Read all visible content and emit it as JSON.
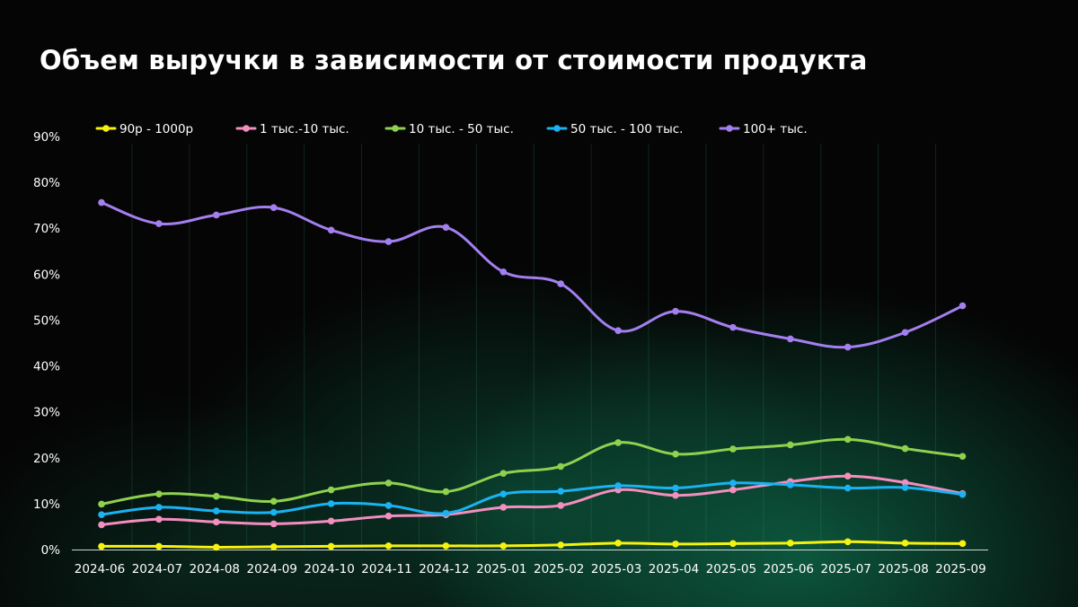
{
  "title": "Объем выручки в зависимости от стоимости продукта",
  "chart_data": {
    "type": "line",
    "title": "Объем выручки в зависимости от стоимости продукта",
    "xlabel": "",
    "ylabel": "",
    "categories": [
      "2024-06",
      "2024-07",
      "2024-08",
      "2024-09",
      "2024-10",
      "2024-11",
      "2024-12",
      "2025-01",
      "2025-02",
      "2025-03",
      "2025-04",
      "2025-05",
      "2025-06",
      "2025-07",
      "2025-08",
      "2025-09"
    ],
    "y_ticks": [
      "0%",
      "10%",
      "20%",
      "30%",
      "40%",
      "50%",
      "60%",
      "70%",
      "80%",
      "90%"
    ],
    "ylim": [
      0,
      90
    ],
    "grid": "vertical",
    "legend_position": "top",
    "series": [
      {
        "name": "90р - 1000р",
        "color": "#f5f211",
        "values": [
          0.7,
          0.7,
          0.5,
          0.6,
          0.7,
          0.8,
          0.8,
          0.8,
          1.0,
          1.4,
          1.2,
          1.3,
          1.4,
          1.7,
          1.4,
          1.3
        ]
      },
      {
        "name": "1 тыс.-10 тыс.",
        "color": "#f28fbf",
        "values": [
          5.4,
          6.6,
          6.0,
          5.6,
          6.2,
          7.3,
          7.6,
          9.2,
          9.6,
          13.0,
          11.8,
          13.0,
          14.8,
          16.0,
          14.6,
          12.2
        ]
      },
      {
        "name": "10 тыс. - 50 тыс.",
        "color": "#8fd14f",
        "values": [
          9.9,
          12.1,
          11.6,
          10.5,
          13.0,
          14.5,
          12.6,
          16.6,
          18.1,
          23.3,
          20.8,
          21.9,
          22.8,
          24.0,
          22.0,
          20.3
        ]
      },
      {
        "name": "50 тыс. - 100 тыс.",
        "color": "#1ab2f0",
        "values": [
          7.6,
          9.2,
          8.4,
          8.1,
          10.0,
          9.6,
          7.9,
          12.1,
          12.7,
          13.9,
          13.4,
          14.5,
          14.1,
          13.4,
          13.5,
          12.0
        ]
      },
      {
        "name": "100+ тыс.",
        "color": "#a47ff0",
        "values": [
          75.6,
          71.0,
          72.9,
          74.5,
          69.6,
          67.1,
          70.2,
          60.5,
          57.9,
          47.7,
          51.9,
          48.4,
          45.9,
          44.1,
          47.3,
          53.1
        ]
      }
    ]
  }
}
